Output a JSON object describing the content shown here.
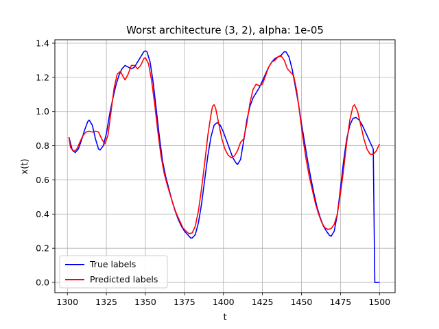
{
  "chart_data": {
    "type": "line",
    "title": "Worst architecture (3, 2), alpha: 1e-05",
    "xlabel": "t",
    "ylabel": "x(t)",
    "xlim": [
      1292,
      1510
    ],
    "ylim": [
      -0.06,
      1.42
    ],
    "xticks": [
      1300,
      1325,
      1350,
      1375,
      1400,
      1425,
      1450,
      1475,
      1500
    ],
    "yticks": [
      0.0,
      0.2,
      0.4,
      0.6,
      0.8,
      1.0,
      1.2,
      1.4
    ],
    "xtick_labels": [
      "1300",
      "1325",
      "1350",
      "1375",
      "1400",
      "1425",
      "1450",
      "1475",
      "1500"
    ],
    "ytick_labels": [
      "0.0",
      "0.2",
      "0.4",
      "0.6",
      "0.8",
      "1.0",
      "1.2",
      "1.4"
    ],
    "grid": true,
    "legend_position": "lower-left",
    "series": [
      {
        "name": "True labels",
        "color": "#0000ff",
        "points": [
          [
            1301,
            0.85
          ],
          [
            1303,
            0.78
          ],
          [
            1305,
            0.76
          ],
          [
            1307,
            0.78
          ],
          [
            1309,
            0.83
          ],
          [
            1311,
            0.89
          ],
          [
            1313,
            0.94
          ],
          [
            1314,
            0.95
          ],
          [
            1316,
            0.92
          ],
          [
            1318,
            0.84
          ],
          [
            1320,
            0.78
          ],
          [
            1321,
            0.775
          ],
          [
            1323,
            0.8
          ],
          [
            1325,
            0.87
          ],
          [
            1327,
            0.98
          ],
          [
            1329,
            1.07
          ],
          [
            1331,
            1.15
          ],
          [
            1333,
            1.21
          ],
          [
            1335,
            1.25
          ],
          [
            1337,
            1.27
          ],
          [
            1339,
            1.26
          ],
          [
            1341,
            1.25
          ],
          [
            1343,
            1.26
          ],
          [
            1345,
            1.29
          ],
          [
            1347,
            1.32
          ],
          [
            1349,
            1.35
          ],
          [
            1350,
            1.355
          ],
          [
            1351,
            1.35
          ],
          [
            1353,
            1.29
          ],
          [
            1355,
            1.17
          ],
          [
            1357,
            1.01
          ],
          [
            1359,
            0.85
          ],
          [
            1361,
            0.71
          ],
          [
            1363,
            0.62
          ],
          [
            1365,
            0.55
          ],
          [
            1367,
            0.48
          ],
          [
            1369,
            0.42
          ],
          [
            1371,
            0.37
          ],
          [
            1373,
            0.33
          ],
          [
            1375,
            0.3
          ],
          [
            1377,
            0.28
          ],
          [
            1379,
            0.26
          ],
          [
            1380,
            0.26
          ],
          [
            1382,
            0.28
          ],
          [
            1384,
            0.35
          ],
          [
            1386,
            0.46
          ],
          [
            1388,
            0.6
          ],
          [
            1390,
            0.74
          ],
          [
            1392,
            0.85
          ],
          [
            1394,
            0.92
          ],
          [
            1396,
            0.935
          ],
          [
            1398,
            0.92
          ],
          [
            1400,
            0.88
          ],
          [
            1402,
            0.83
          ],
          [
            1404,
            0.78
          ],
          [
            1406,
            0.73
          ],
          [
            1408,
            0.7
          ],
          [
            1409,
            0.69
          ],
          [
            1411,
            0.72
          ],
          [
            1413,
            0.83
          ],
          [
            1415,
            0.95
          ],
          [
            1417,
            1.03
          ],
          [
            1419,
            1.08
          ],
          [
            1421,
            1.11
          ],
          [
            1423,
            1.14
          ],
          [
            1425,
            1.18
          ],
          [
            1427,
            1.22
          ],
          [
            1429,
            1.26
          ],
          [
            1431,
            1.29
          ],
          [
            1433,
            1.31
          ],
          [
            1435,
            1.32
          ],
          [
            1437,
            1.33
          ],
          [
            1439,
            1.35
          ],
          [
            1440,
            1.35
          ],
          [
            1442,
            1.32
          ],
          [
            1444,
            1.25
          ],
          [
            1446,
            1.15
          ],
          [
            1448,
            1.05
          ],
          [
            1450,
            0.93
          ],
          [
            1452,
            0.82
          ],
          [
            1454,
            0.71
          ],
          [
            1456,
            0.61
          ],
          [
            1458,
            0.52
          ],
          [
            1460,
            0.44
          ],
          [
            1462,
            0.38
          ],
          [
            1464,
            0.33
          ],
          [
            1466,
            0.3
          ],
          [
            1468,
            0.275
          ],
          [
            1469,
            0.27
          ],
          [
            1471,
            0.3
          ],
          [
            1473,
            0.4
          ],
          [
            1475,
            0.55
          ],
          [
            1477,
            0.71
          ],
          [
            1479,
            0.84
          ],
          [
            1481,
            0.92
          ],
          [
            1483,
            0.96
          ],
          [
            1485,
            0.965
          ],
          [
            1487,
            0.95
          ],
          [
            1489,
            0.92
          ],
          [
            1491,
            0.88
          ],
          [
            1493,
            0.84
          ],
          [
            1495,
            0.8
          ],
          [
            1496,
            0.78
          ],
          [
            1497,
            0.0
          ],
          [
            1500,
            0.0
          ]
        ]
      },
      {
        "name": "Predicted labels",
        "color": "#ff0000",
        "points": [
          [
            1301,
            0.85
          ],
          [
            1302,
            0.79
          ],
          [
            1304,
            0.765
          ],
          [
            1306,
            0.78
          ],
          [
            1308,
            0.82
          ],
          [
            1310,
            0.86
          ],
          [
            1312,
            0.88
          ],
          [
            1314,
            0.885
          ],
          [
            1316,
            0.88
          ],
          [
            1318,
            0.885
          ],
          [
            1320,
            0.88
          ],
          [
            1322,
            0.84
          ],
          [
            1324,
            0.81
          ],
          [
            1326,
            0.86
          ],
          [
            1328,
            1.0
          ],
          [
            1330,
            1.14
          ],
          [
            1332,
            1.22
          ],
          [
            1334,
            1.235
          ],
          [
            1336,
            1.2
          ],
          [
            1337,
            1.185
          ],
          [
            1339,
            1.22
          ],
          [
            1341,
            1.27
          ],
          [
            1343,
            1.27
          ],
          [
            1345,
            1.25
          ],
          [
            1347,
            1.27
          ],
          [
            1349,
            1.31
          ],
          [
            1350,
            1.315
          ],
          [
            1352,
            1.28
          ],
          [
            1354,
            1.18
          ],
          [
            1356,
            1.04
          ],
          [
            1358,
            0.88
          ],
          [
            1360,
            0.74
          ],
          [
            1362,
            0.64
          ],
          [
            1364,
            0.57
          ],
          [
            1366,
            0.51
          ],
          [
            1368,
            0.45
          ],
          [
            1370,
            0.4
          ],
          [
            1372,
            0.36
          ],
          [
            1374,
            0.32
          ],
          [
            1376,
            0.3
          ],
          [
            1378,
            0.285
          ],
          [
            1380,
            0.29
          ],
          [
            1382,
            0.33
          ],
          [
            1384,
            0.42
          ],
          [
            1386,
            0.55
          ],
          [
            1388,
            0.7
          ],
          [
            1390,
            0.86
          ],
          [
            1392,
            0.98
          ],
          [
            1393,
            1.03
          ],
          [
            1394,
            1.04
          ],
          [
            1395,
            1.02
          ],
          [
            1397,
            0.93
          ],
          [
            1399,
            0.84
          ],
          [
            1401,
            0.78
          ],
          [
            1403,
            0.745
          ],
          [
            1405,
            0.73
          ],
          [
            1407,
            0.74
          ],
          [
            1409,
            0.77
          ],
          [
            1411,
            0.82
          ],
          [
            1413,
            0.84
          ],
          [
            1415,
            0.93
          ],
          [
            1417,
            1.05
          ],
          [
            1419,
            1.13
          ],
          [
            1421,
            1.16
          ],
          [
            1423,
            1.15
          ],
          [
            1425,
            1.16
          ],
          [
            1427,
            1.21
          ],
          [
            1429,
            1.26
          ],
          [
            1431,
            1.29
          ],
          [
            1433,
            1.3
          ],
          [
            1435,
            1.32
          ],
          [
            1437,
            1.325
          ],
          [
            1439,
            1.3
          ],
          [
            1441,
            1.25
          ],
          [
            1443,
            1.23
          ],
          [
            1445,
            1.21
          ],
          [
            1447,
            1.12
          ],
          [
            1449,
            0.98
          ],
          [
            1451,
            0.84
          ],
          [
            1453,
            0.72
          ],
          [
            1455,
            0.62
          ],
          [
            1457,
            0.54
          ],
          [
            1459,
            0.46
          ],
          [
            1461,
            0.4
          ],
          [
            1463,
            0.35
          ],
          [
            1465,
            0.32
          ],
          [
            1467,
            0.31
          ],
          [
            1469,
            0.315
          ],
          [
            1471,
            0.34
          ],
          [
            1473,
            0.4
          ],
          [
            1475,
            0.52
          ],
          [
            1477,
            0.66
          ],
          [
            1479,
            0.82
          ],
          [
            1481,
            0.95
          ],
          [
            1483,
            1.03
          ],
          [
            1484,
            1.04
          ],
          [
            1486,
            1.0
          ],
          [
            1488,
            0.92
          ],
          [
            1490,
            0.84
          ],
          [
            1492,
            0.78
          ],
          [
            1494,
            0.75
          ],
          [
            1496,
            0.75
          ],
          [
            1498,
            0.77
          ],
          [
            1500,
            0.81
          ]
        ]
      }
    ]
  }
}
